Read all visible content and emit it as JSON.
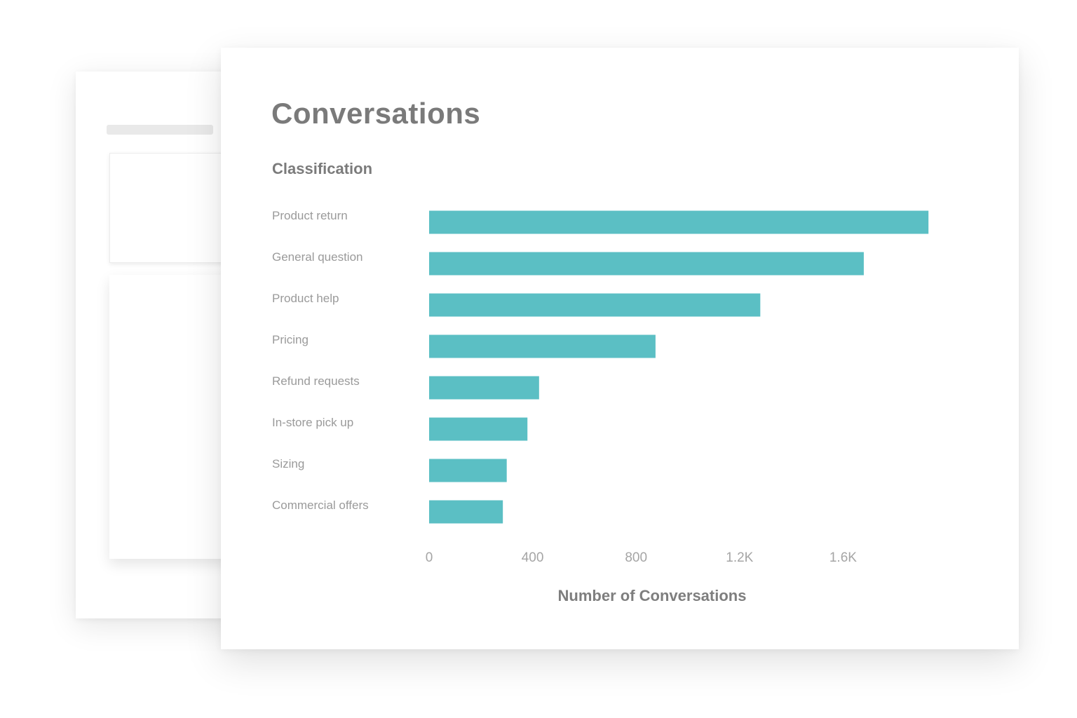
{
  "colors": {
    "bar": "#5bbfc4"
  },
  "title": "Conversations",
  "chart_data": {
    "type": "bar",
    "orientation": "horizontal",
    "title": "Classification",
    "xlabel": "Number of Conversations",
    "ylabel": "",
    "categories": [
      "Product return",
      "General question",
      "Product help",
      "Pricing",
      "Refund requests",
      "In-store pick up",
      "Sizing",
      "Commercial offers"
    ],
    "values": [
      1930,
      1680,
      1280,
      875,
      425,
      380,
      300,
      285
    ],
    "xlim": [
      0,
      2000
    ],
    "xticks": [
      0,
      400,
      800,
      1200,
      1600
    ],
    "xtick_labels": [
      "0",
      "400",
      "800",
      "1.2K",
      "1.6K"
    ],
    "grid": false,
    "legend": "none"
  }
}
